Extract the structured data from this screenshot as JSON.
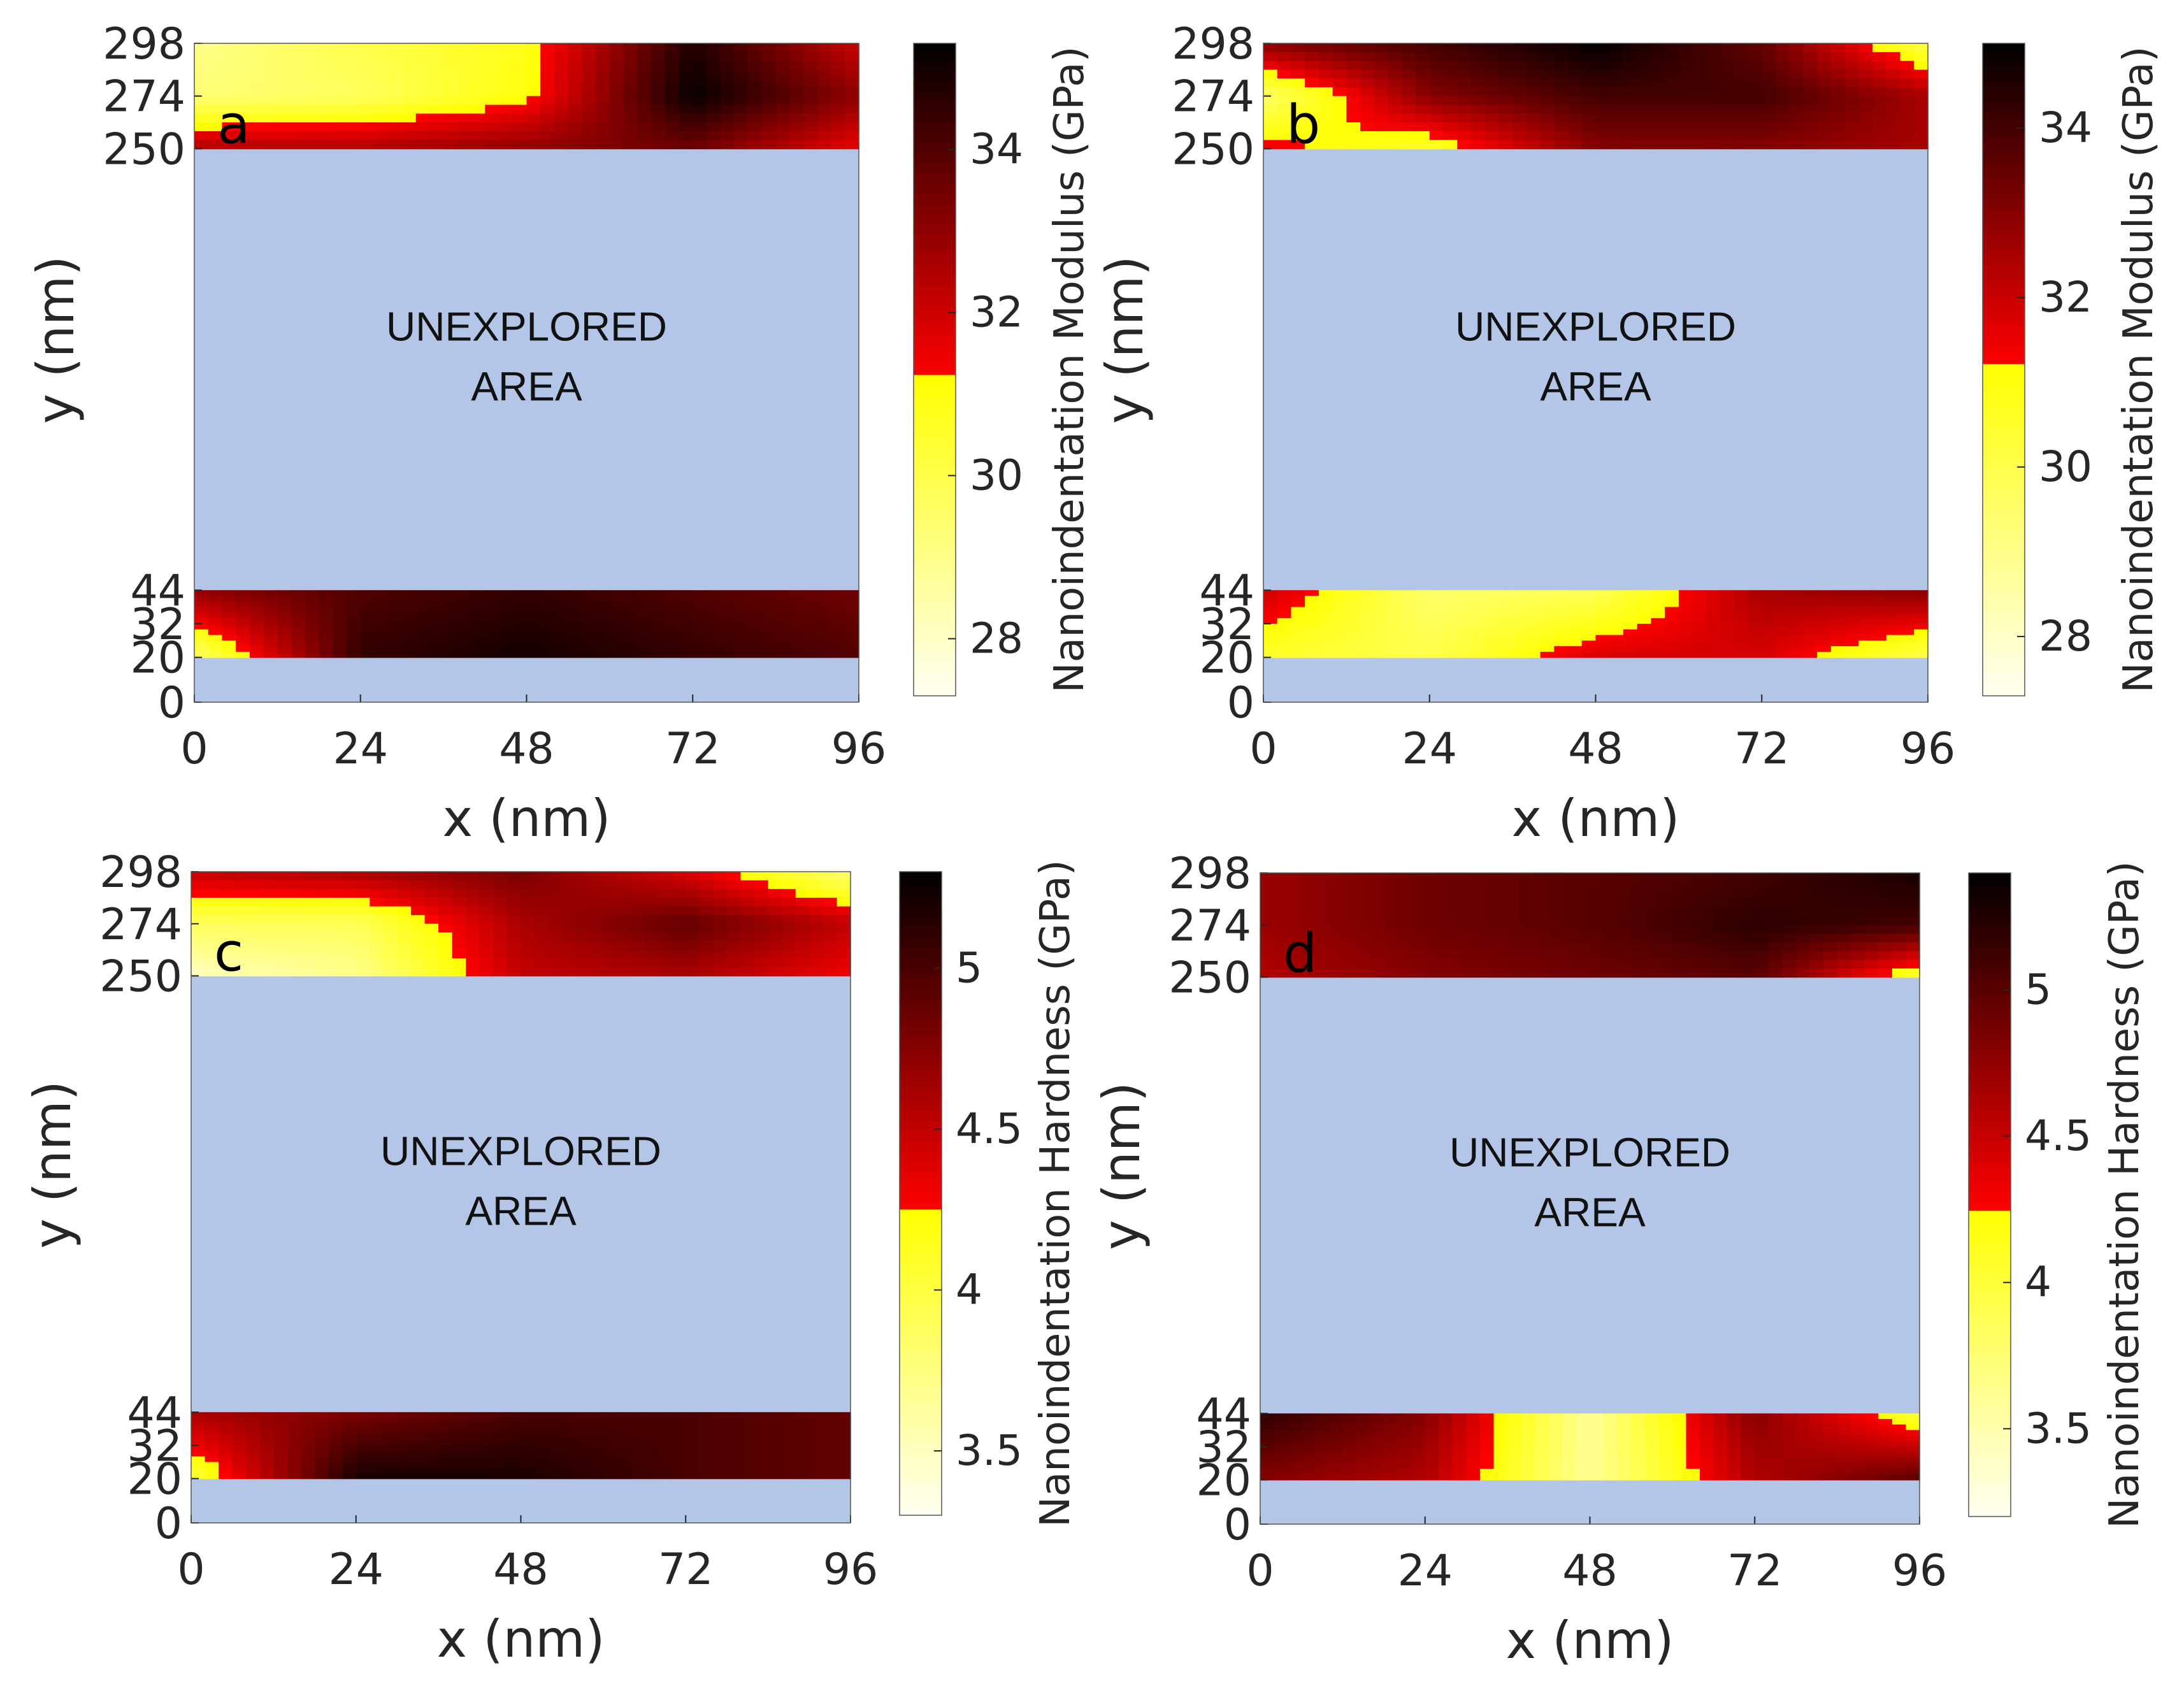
{
  "colors": {
    "unexplored": "#b4c6e7",
    "colormap_stops": [
      "#fffff2",
      "#ffff00",
      "#ff0000",
      "#000000"
    ],
    "axis": "#262626"
  },
  "chart_data": [
    {
      "type": "heatmap",
      "panel_label": "a",
      "xlabel": "x  (nm)",
      "ylabel": "y  (nm)",
      "xlim": [
        0,
        96
      ],
      "x_ticks": [
        "0",
        "24",
        "48",
        "72",
        "96"
      ],
      "y_ticks": [
        "298",
        "274",
        "250",
        "44",
        "32",
        "20",
        "0"
      ],
      "colorbar": {
        "label": "Nanoindentation Modulus (GPa)",
        "range": [
          27.3,
          35.3
        ],
        "ticks": [
          "34",
          "32",
          "30",
          "28"
        ],
        "threshold": 31.2
      },
      "unexplored_text": [
        "UNEXPLORED",
        "AREA"
      ],
      "regions": [
        {
          "y_range": [
            250,
            298
          ],
          "field": [
            [
              29.0,
              30.0,
              30.8,
              34.8,
              32.0
            ],
            [
              29.3,
              29.7,
              31.0,
              35.2,
              33.0
            ],
            [
              32.5,
              32.5,
              33.0,
              33.5,
              31.5
            ]
          ]
        },
        {
          "y_range": [
            20,
            44
          ],
          "field": [
            [
              33.0,
              34.0,
              34.5,
              34.0,
              33.5
            ],
            [
              29.5,
              34.5,
              35.0,
              34.5,
              34.0
            ]
          ]
        }
      ]
    },
    {
      "type": "heatmap",
      "panel_label": "b",
      "xlabel": "x  (nm)",
      "ylabel": "y  (nm)",
      "xlim": [
        0,
        96
      ],
      "x_ticks": [
        "0",
        "24",
        "48",
        "72",
        "96"
      ],
      "y_ticks": [
        "298",
        "274",
        "250",
        "44",
        "32",
        "20",
        "0"
      ],
      "colorbar": {
        "label": "Nanoindentation Modulus (GPa)",
        "range": [
          27.3,
          35.0
        ],
        "ticks": [
          "34",
          "32",
          "30",
          "28"
        ],
        "threshold": 31.2
      },
      "unexplored_text": [
        "UNEXPLORED",
        "AREA"
      ],
      "regions": [
        {
          "y_range": [
            250,
            298
          ],
          "field": [
            [
              33.0,
              34.0,
              35.0,
              33.5,
              30.0
            ],
            [
              29.5,
              33.0,
              34.0,
              34.0,
              32.5
            ],
            [
              31.5,
              30.5,
              33.0,
              33.0,
              32.5
            ]
          ]
        },
        {
          "y_range": [
            20,
            44
          ],
          "field": [
            [
              32.0,
              29.5,
              29.8,
              32.5,
              33.0
            ],
            [
              30.5,
              30.0,
              31.8,
              31.8,
              30.0
            ]
          ]
        }
      ]
    },
    {
      "type": "heatmap",
      "panel_label": "c",
      "xlabel": "x  (nm)",
      "ylabel": "y  (nm)",
      "xlim": [
        0,
        96
      ],
      "x_ticks": [
        "0",
        "24",
        "48",
        "72",
        "96"
      ],
      "y_ticks": [
        "298",
        "274",
        "250",
        "44",
        "32",
        "20",
        "0"
      ],
      "colorbar": {
        "label": "Nanoindentation Hardness (GPa)",
        "range": [
          3.3,
          5.3
        ],
        "ticks": [
          "5",
          "4.5",
          "4",
          "3.5"
        ],
        "threshold": 4.25
      },
      "unexplored_text": [
        "UNEXPLORED",
        "AREA"
      ],
      "regions": [
        {
          "y_range": [
            250,
            298
          ],
          "field": [
            [
              4.5,
              4.6,
              4.8,
              4.4,
              3.8
            ],
            [
              3.9,
              3.9,
              4.6,
              4.9,
              4.5
            ],
            [
              3.5,
              3.7,
              4.5,
              4.6,
              4.3
            ]
          ]
        },
        {
          "y_range": [
            20,
            44
          ],
          "field": [
            [
              4.6,
              4.8,
              5.0,
              5.0,
              4.9
            ],
            [
              4.0,
              5.2,
              5.2,
              5.0,
              4.9
            ]
          ]
        }
      ]
    },
    {
      "type": "heatmap",
      "panel_label": "d",
      "xlabel": "x  (nm)",
      "ylabel": "y  (nm)",
      "xlim": [
        0,
        96
      ],
      "x_ticks": [
        "0",
        "24",
        "48",
        "72",
        "96"
      ],
      "y_ticks": [
        "298",
        "274",
        "250",
        "44",
        "32",
        "20",
        "0"
      ],
      "colorbar": {
        "label": "Nanoindentation Hardness (GPa)",
        "range": [
          3.2,
          5.4
        ],
        "ticks": [
          "5",
          "4.5",
          "4",
          "3.5"
        ],
        "threshold": 4.25
      },
      "unexplored_text": [
        "UNEXPLORED",
        "AREA"
      ],
      "regions": [
        {
          "y_range": [
            250,
            298
          ],
          "field": [
            [
              4.7,
              4.9,
              5.0,
              5.1,
              5.3
            ],
            [
              4.7,
              4.9,
              5.0,
              5.2,
              5.1
            ],
            [
              4.6,
              4.8,
              4.9,
              5.0,
              4.0
            ]
          ]
        },
        {
          "y_range": [
            20,
            44
          ],
          "field": [
            [
              5.2,
              4.8,
              3.6,
              4.8,
              4.0
            ],
            [
              4.8,
              4.6,
              3.6,
              4.6,
              5.0
            ]
          ]
        }
      ]
    }
  ]
}
